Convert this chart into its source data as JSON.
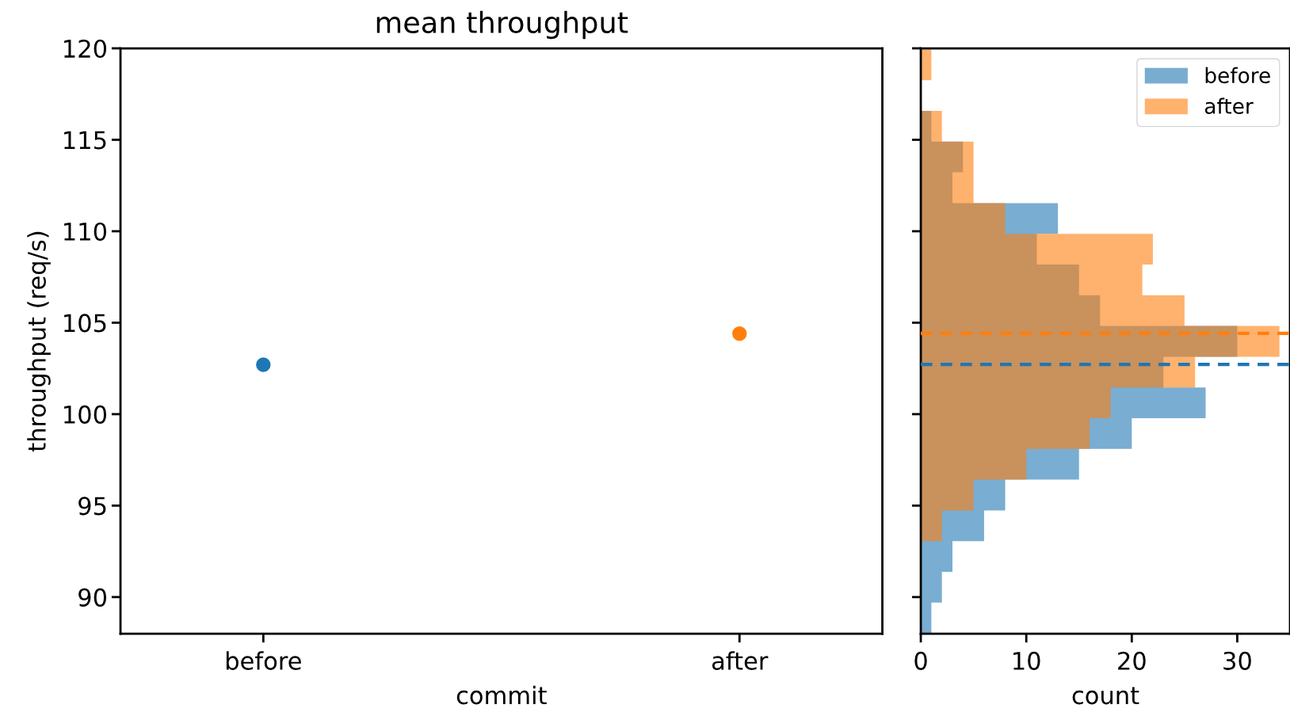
{
  "chart_data": [
    {
      "type": "scatter",
      "title": "mean throughput",
      "xlabel": "commit",
      "ylabel": "throughput (req/s)",
      "categories": [
        "before",
        "after"
      ],
      "values": [
        102.7,
        104.4
      ],
      "colors": [
        "#1f77b4",
        "#ff7f0e"
      ],
      "marker": "circle",
      "ylim": [
        88,
        120
      ],
      "yticks": [
        90,
        95,
        100,
        105,
        110,
        115,
        120
      ],
      "grid": false
    },
    {
      "type": "histogram",
      "orientation": "horizontal",
      "xlabel": "count",
      "bins": [
        88.02,
        89.7,
        91.38,
        93.06,
        94.74,
        96.42,
        98.1,
        99.78,
        101.46,
        103.14,
        104.82,
        106.5,
        108.18,
        109.86,
        111.54,
        113.22,
        114.9,
        116.58,
        118.26,
        119.94
      ],
      "series": [
        {
          "name": "before",
          "color": "#1f77b4",
          "values": [
            1,
            2,
            3,
            6,
            8,
            15,
            20,
            27,
            23,
            30,
            17,
            15,
            11,
            13,
            3,
            4,
            1,
            0,
            0
          ]
        },
        {
          "name": "after",
          "color": "#ff7f0e",
          "values": [
            0,
            0,
            0,
            2,
            5,
            10,
            16,
            18,
            26,
            34,
            25,
            21,
            22,
            8,
            5,
            5,
            2,
            0,
            1
          ]
        }
      ],
      "ref_lines": [
        {
          "axis": "y",
          "value": 102.72,
          "color": "#1f77b4",
          "line_style": "dashed"
        },
        {
          "axis": "y",
          "value": 104.42,
          "color": "#ff7f0e",
          "line_style": "dashed"
        }
      ],
      "xlim": [
        0,
        35
      ],
      "xticks": [
        0,
        10,
        20,
        30
      ],
      "ylim": [
        88,
        120
      ],
      "yticks": [
        90,
        95,
        100,
        105,
        110,
        115,
        120
      ],
      "tick_labels": "x",
      "legend": "top right",
      "grid": false
    }
  ]
}
